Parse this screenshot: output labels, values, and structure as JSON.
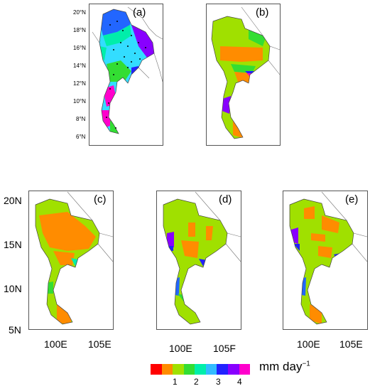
{
  "panels": [
    {
      "label": "(a)"
    },
    {
      "label": "(b)"
    },
    {
      "label": "(c)"
    },
    {
      "label": "(d)"
    },
    {
      "label": "(e)"
    }
  ],
  "panel_a_lat_ticks": [
    "20°N",
    "18°N",
    "16°N",
    "14°N",
    "12°N",
    "10°N",
    "8°N",
    "6°N"
  ],
  "lower_lat_ticks": [
    "20N",
    "15N",
    "10N",
    "5N"
  ],
  "lon_ticks_c": [
    "100E",
    "105E"
  ],
  "lon_ticks_d": [
    "100E",
    "105F"
  ],
  "lon_ticks_e": [
    "100E",
    "105E"
  ],
  "colorbar": {
    "colors": [
      "#ff0000",
      "#ff8c00",
      "#a0e000",
      "#33dd33",
      "#00eeaa",
      "#33bbff",
      "#2222ff",
      "#8800ff",
      "#ff00cc"
    ],
    "tick_labels": [
      "1",
      "2",
      "3",
      "4"
    ],
    "unit_text": "mm day",
    "unit_exp": "−1"
  }
}
